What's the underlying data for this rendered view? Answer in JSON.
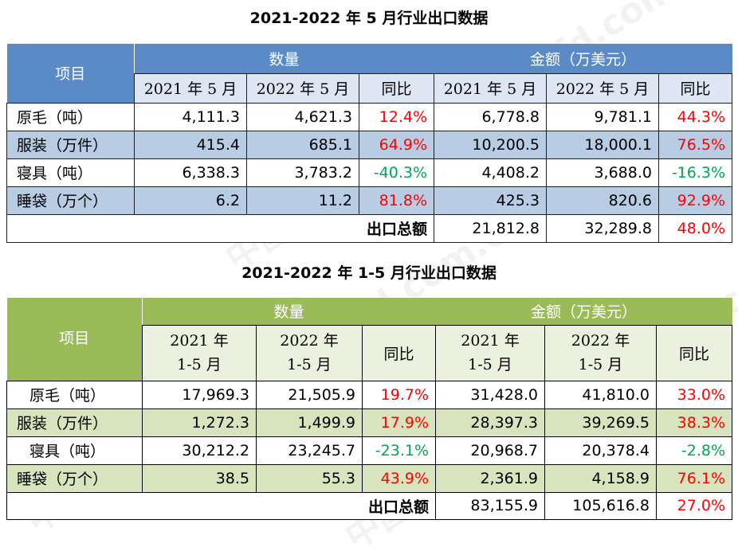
{
  "table1": {
    "title": "2021-2022 年 5 月行业出口数据",
    "item_header": "项目",
    "group_quantity": "数量",
    "group_amount": "金额（万美元）",
    "sub_headers": [
      "2021 年 5 月",
      "2022 年 5 月",
      "同比",
      "2021 年 5 月",
      "2022 年 5 月",
      "同比"
    ],
    "rows": [
      {
        "label": "原毛（吨）",
        "q2021": "4,111.3",
        "q2022": "4,621.3",
        "qyoy": "12.4%",
        "a2021": "6,778.8",
        "a2022": "9,781.1",
        "ayoy": "44.3%"
      },
      {
        "label": "服装（万件）",
        "q2021": "415.4",
        "q2022": "685.1",
        "qyoy": "64.9%",
        "a2021": "10,200.5",
        "a2022": "18,000.1",
        "ayoy": "76.5%"
      },
      {
        "label": "寝具（吨）",
        "q2021": "6,338.3",
        "q2022": "3,783.2",
        "qyoy": "-40.3%",
        "a2021": "4,408.2",
        "a2022": "3,688.0",
        "ayoy": "-16.3%"
      },
      {
        "label": "睡袋（万个）",
        "q2021": "6.2",
        "q2022": "11.2",
        "qyoy": "81.8%",
        "a2021": "425.3",
        "a2022": "820.6",
        "ayoy": "92.9%"
      }
    ],
    "total": {
      "label": "出口总额",
      "a2021": "21,812.8",
      "a2022": "32,289.8",
      "ayoy": "48.0%"
    }
  },
  "table2": {
    "title": "2021-2022 年 1-5 月行业出口数据",
    "item_header": "项目",
    "group_quantity": "数量",
    "group_amount": "金额（万美元）",
    "sub_headers": [
      {
        "line1": "2021 年",
        "line2": "1-5 月"
      },
      {
        "line1": "2022 年",
        "line2": "1-5 月"
      },
      {
        "line1": "同比",
        "line2": ""
      },
      {
        "line1": "2021 年",
        "line2": "1-5 月"
      },
      {
        "line1": "2022 年",
        "line2": "1-5 月"
      },
      {
        "line1": "同比",
        "line2": ""
      }
    ],
    "rows": [
      {
        "label": "原毛（吨）",
        "q2021": "17,969.3",
        "q2022": "21,505.9",
        "qyoy": "19.7%",
        "a2021": "31,428.0",
        "a2022": "41,810.0",
        "ayoy": "33.0%"
      },
      {
        "label": "服装（万件）",
        "q2021": "1,272.3",
        "q2022": "1,499.9",
        "qyoy": "17.9%",
        "a2021": "28,397.3",
        "a2022": "39,269.5",
        "ayoy": "38.3%"
      },
      {
        "label": "寝具（吨）",
        "q2021": "30,212.2",
        "q2022": "23,245.7",
        "qyoy": "-23.1%",
        "a2021": "20,968.7",
        "a2022": "20,378.4",
        "ayoy": "-2.8%"
      },
      {
        "label": "睡袋（万个）",
        "q2021": "38.5",
        "q2022": "55.3",
        "qyoy": "43.9%",
        "a2021": "2,361.9",
        "a2022": "4,158.9",
        "ayoy": "76.1%"
      }
    ],
    "total": {
      "label": "出口总额",
      "a2021": "83,155.9",
      "a2022": "105,616.8",
      "ayoy": "27.0%"
    }
  },
  "watermark": {
    "text": "中国纺织信息网 www.cfd.com.cn",
    "color": "#969696"
  },
  "colors": {
    "table1_header": "#5b8bc6",
    "table1_band": "#b8cce4",
    "table2_header": "#9bbb59",
    "table2_band": "#d7e4bd",
    "positive": "#ff0000",
    "negative": "#00a651"
  }
}
